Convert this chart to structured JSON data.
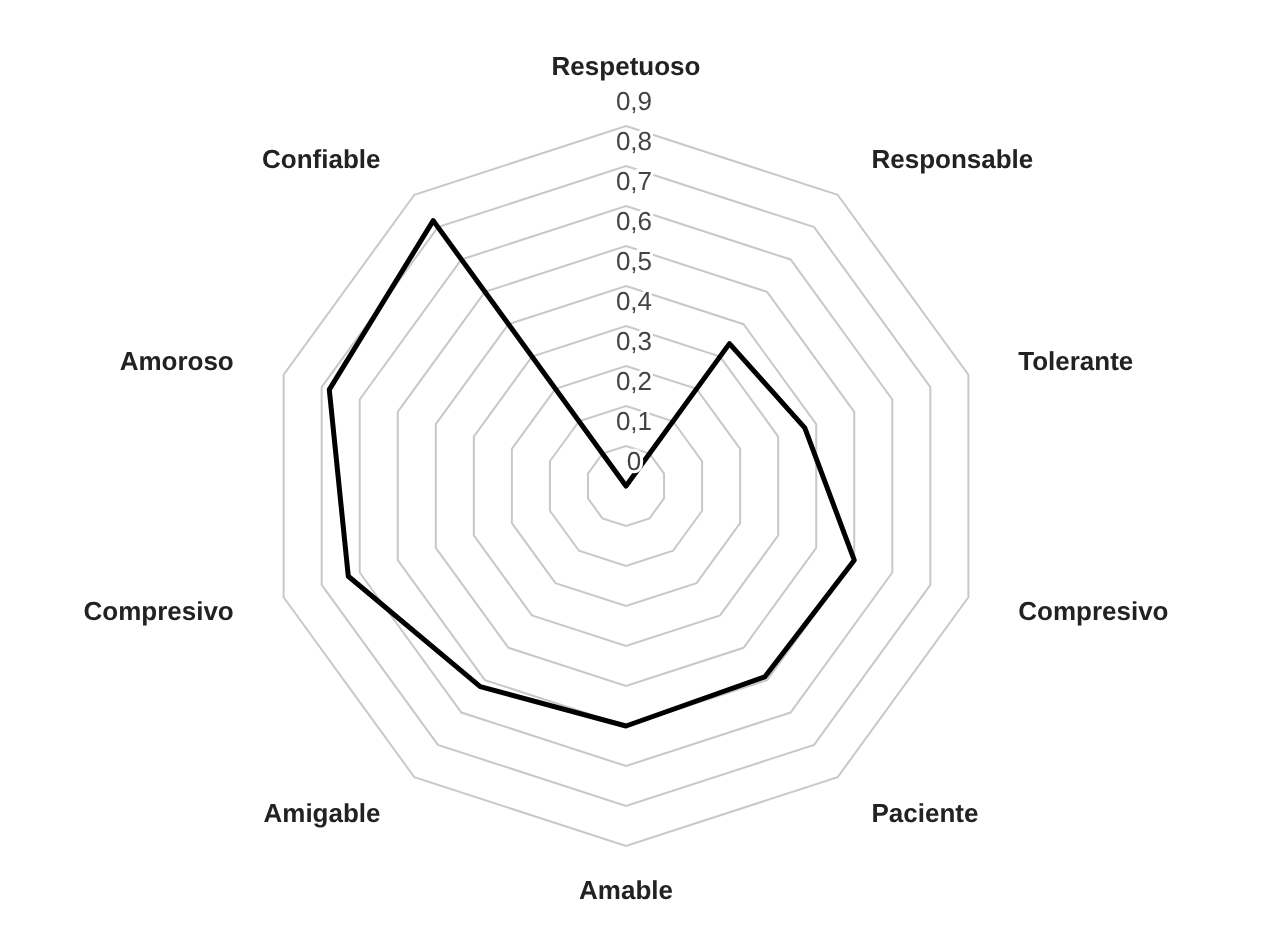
{
  "chart_data": {
    "type": "radar",
    "categories": [
      "Respetuoso",
      "Responsable",
      "Tolerante",
      "Compresivo",
      "Paciente",
      "Amable",
      "Amigable",
      "Compresivo",
      "Amoroso",
      "Confiable"
    ],
    "series": [
      {
        "color": "#000000",
        "values": [
          0,
          0.44,
          0.47,
          0.6,
          0.59,
          0.6,
          0.62,
          0.73,
          0.78,
          0.82
        ]
      }
    ],
    "ylim": [
      0,
      0.9
    ],
    "yticks": [
      {
        "value": 0,
        "label": "0"
      },
      {
        "value": 0.1,
        "label": "0,1"
      },
      {
        "value": 0.2,
        "label": "0,2"
      },
      {
        "value": 0.3,
        "label": "0,3"
      },
      {
        "value": 0.4,
        "label": "0,4"
      },
      {
        "value": 0.5,
        "label": "0,5"
      },
      {
        "value": 0.6,
        "label": "0,6"
      },
      {
        "value": 0.7,
        "label": "0,7"
      },
      {
        "value": 0.8,
        "label": "0,8"
      },
      {
        "value": 0.9,
        "label": "0,9"
      }
    ],
    "grid": true,
    "marker": "none",
    "line_style": "solid"
  }
}
